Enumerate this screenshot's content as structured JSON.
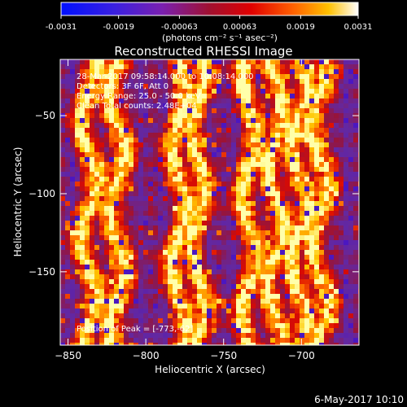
{
  "footer": {
    "date": "6-May-2017 10:10"
  },
  "chart_data": {
    "type": "heatmap",
    "title": "Reconstructed RHESSI Image",
    "xlabel": "Heliocentric X (arcsec)",
    "ylabel": "Heliocentric Y (arcsec)",
    "xlim": [
      -855,
      -663
    ],
    "ylim": [
      -197,
      -14
    ],
    "xticks": [
      -850,
      -800,
      -750,
      -700
    ],
    "yticks": [
      -50,
      -100,
      -150
    ],
    "colorbar": {
      "label": "(photons cm⁻² s⁻¹ asec⁻²)",
      "range": [
        -0.0031,
        0.0031
      ],
      "ticks": [
        -0.0031,
        -0.0019,
        -0.00063,
        0.00063,
        0.0019,
        0.0031
      ],
      "tick_labels": [
        "-0.0031",
        "-0.0019",
        "-0.00063",
        "0.00063",
        "0.0019",
        "0.0031"
      ]
    },
    "annotations": [
      "28-Mar-2017 09:58:14.000 to 10:08:14.000",
      "Detectors: 3F 6F, Att 0",
      "Energy Range: 25.0 - 50.0 keV",
      "Clean     Total counts: 2.48E+04"
    ],
    "peak_label": "Position of Peak = [-773,-62]",
    "bright_ridges_x": [
      -838,
      -820,
      -780,
      -768,
      -735,
      -718,
      -703,
      -690
    ],
    "peak": [
      -773,
      -62
    ],
    "colors": {
      "background": "#000000",
      "frame": "#ffffff",
      "low": "#5a2aa0",
      "high": "#ffff80"
    }
  }
}
